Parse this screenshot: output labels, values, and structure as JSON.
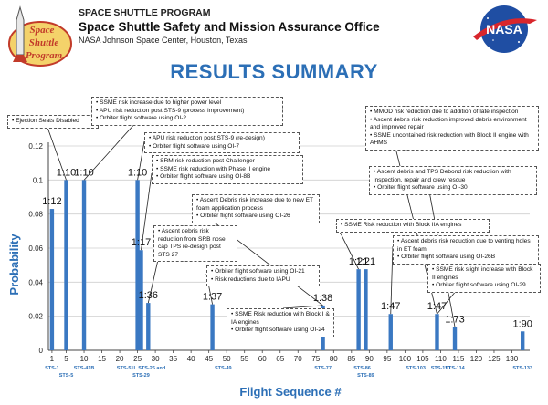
{
  "header": {
    "program": "SPACE SHUTTLE PROGRAM",
    "office": "Space Shuttle Safety and Mission Assurance Office",
    "center": "NASA Johnson Space Center, Houston, Texas",
    "logo_text": [
      "Space",
      "Shuttle",
      "Program"
    ],
    "nasa_logo": "NASA"
  },
  "title": "RESULTS SUMMARY",
  "chart_data": {
    "type": "bar",
    "xlabel": "Flight Sequence #",
    "ylabel": "Probability",
    "xlim": [
      0,
      135
    ],
    "ylim": [
      0,
      0.12
    ],
    "xticks": [
      1,
      5,
      10,
      15,
      20,
      25,
      30,
      35,
      40,
      45,
      50,
      55,
      60,
      65,
      70,
      75,
      80,
      85,
      90,
      95,
      100,
      105,
      110,
      115,
      120,
      125,
      130
    ],
    "yticks": [
      "0",
      "0.02",
      "0.04",
      "0.06",
      "0.08",
      "0.1",
      "0.12"
    ],
    "grid": true,
    "bar_color": "#3a78c2",
    "flight_labels": [
      {
        "x": 1,
        "text": "STS-1",
        "row": 1
      },
      {
        "x": 5,
        "text": "STS-5",
        "row": 2
      },
      {
        "x": 10,
        "text": "STS-41B",
        "row": 1
      },
      {
        "x": 26,
        "text": "STS-51L STS-26 and",
        "row": 1
      },
      {
        "x": 26,
        "text": "STS-29",
        "row": 2
      },
      {
        "x": 49,
        "text": "STS-49",
        "row": 1
      },
      {
        "x": 77,
        "text": "STS-77",
        "row": 1
      },
      {
        "x": 88,
        "text": "STS-86",
        "row": 1
      },
      {
        "x": 89,
        "text": "STS-89",
        "row": 2
      },
      {
        "x": 103,
        "text": "STS-103",
        "row": 1
      },
      {
        "x": 110,
        "text": "STS-110",
        "row": 1
      },
      {
        "x": 114,
        "text": "STS-114",
        "row": 1
      },
      {
        "x": 133,
        "text": "STS-133",
        "row": 1
      }
    ],
    "bars": [
      {
        "x": 1,
        "value": 0.083,
        "label": "1:12"
      },
      {
        "x": 5,
        "value": 0.1,
        "label": "1:10"
      },
      {
        "x": 10,
        "value": 0.1,
        "label": "1:10"
      },
      {
        "x": 25,
        "value": 0.1,
        "label": "1:10"
      },
      {
        "x": 26,
        "value": 0.0588,
        "label": "1:17"
      },
      {
        "x": 28,
        "value": 0.0278,
        "label": "1:36"
      },
      {
        "x": 46,
        "value": 0.027,
        "label": "1:37"
      },
      {
        "x": 77,
        "value": 0.0263,
        "label": "1:38"
      },
      {
        "x": 87,
        "value": 0.0476,
        "label": "1:21"
      },
      {
        "x": 89,
        "value": 0.0476,
        "label": "1:21"
      },
      {
        "x": 96,
        "value": 0.0213,
        "label": "1:47"
      },
      {
        "x": 109,
        "value": 0.0213,
        "label": "1:47"
      },
      {
        "x": 114,
        "value": 0.0137,
        "label": "1:73"
      },
      {
        "x": 133,
        "value": 0.0111,
        "label": "1:90"
      }
    ],
    "annotations": [
      {
        "lines": [
          "Ejection Seats Disabled"
        ],
        "x": 3
      },
      {
        "lines": [
          "SSME risk increase due to higher power level",
          "APU risk reduction post STS-9 (process improvement)",
          "Orbiter flight software using OI-2"
        ],
        "x": 10
      },
      {
        "lines": [
          "APU risk reduction post STS-9 (re-design)",
          "Orbiter flight software using OI-7"
        ],
        "x": 26
      },
      {
        "lines": [
          "SRM risk reduction post Challenger",
          "SSME risk reduction with Phase II engine",
          "Orbiter flight software using OI-8B"
        ],
        "x": 26
      },
      {
        "lines": [
          "Ascent Debris risk increase due to new ET foam application process",
          "Orbiter flight software using OI-26"
        ],
        "x": 77
      },
      {
        "lines": [
          "Ascent debris risk reduction from SRB nose cap TPS re-design post STS 27"
        ],
        "x": 28
      },
      {
        "lines": [
          "Orbiter flight software using OI-21",
          "Risk reductions due to IAPU"
        ],
        "x": 46
      },
      {
        "lines": [
          "SSME Risk reduction with Block I & IA engines",
          "Orbiter flight software using OI-24"
        ],
        "x": 77
      },
      {
        "lines": [
          "SSME Risk reduction with Block IIA engines"
        ],
        "x": 87
      },
      {
        "lines": [
          "MMOD risk reduction due to addition of late inspection",
          "Ascent debris risk reduction improved debris environment and improved repair",
          "SSME uncontained risk reduction with Block II engine with AHMS"
        ],
        "x": 109
      },
      {
        "lines": [
          "Ascent debris and TPS Debond risk reduction with inspection, repair and crew rescue",
          "Orbiter flight software using OI-30"
        ],
        "x": 114
      },
      {
        "lines": [
          "Ascent debris risk reduction due to venting holes in ET foam",
          "Orbiter flight software using OI-26B"
        ],
        "x": 96
      },
      {
        "lines": [
          "SSME risk slight increase with Block II engines",
          "Orbiter flight software using OI-29"
        ],
        "x": 109
      }
    ]
  }
}
